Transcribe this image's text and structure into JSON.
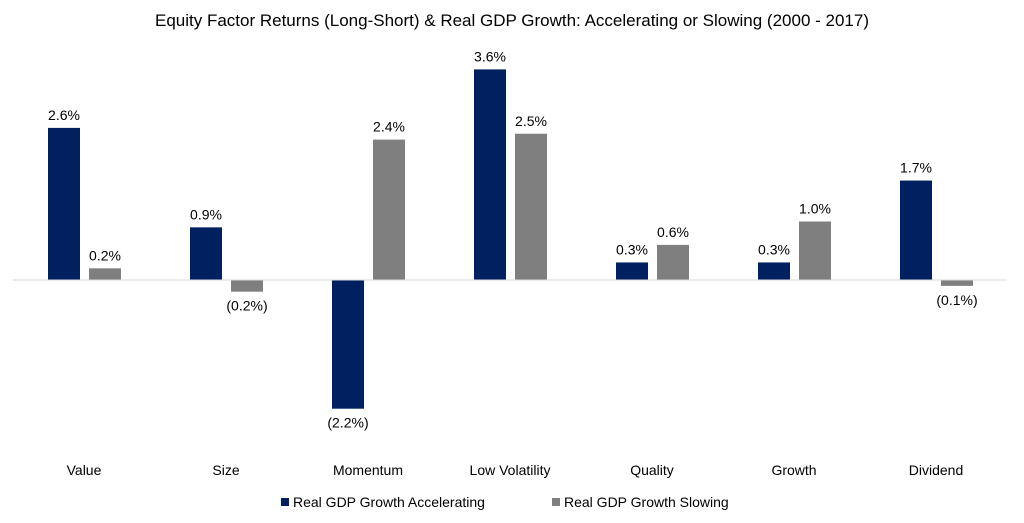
{
  "chart_data": {
    "type": "bar",
    "title": "Equity Factor Returns (Long-Short) & Real GDP Growth: Accelerating or Slowing (2000 - 2017)",
    "categories": [
      "Value",
      "Size",
      "Momentum",
      "Low Volatility",
      "Quality",
      "Growth",
      "Dividend"
    ],
    "series": [
      {
        "name": "Real GDP Growth Accelerating",
        "color": "#002060",
        "values": [
          2.6,
          0.9,
          -2.2,
          3.6,
          0.3,
          0.3,
          1.7
        ],
        "labels": [
          "2.6%",
          "0.9%",
          "(2.2%)",
          "3.6%",
          "0.3%",
          "0.3%",
          "1.7%"
        ]
      },
      {
        "name": "Real GDP Growth Slowing",
        "color": "#7f7f7f",
        "values": [
          0.2,
          -0.2,
          2.4,
          2.5,
          0.6,
          1.0,
          -0.1
        ],
        "labels": [
          "0.2%",
          "(0.2%)",
          "2.4%",
          "2.5%",
          "0.6%",
          "1.0%",
          "(0.1%)"
        ]
      }
    ],
    "xlabel": "",
    "ylabel": "",
    "unit": "%",
    "grid": false,
    "legend": "bottom",
    "axis_line_color": "#d9d9d9"
  }
}
